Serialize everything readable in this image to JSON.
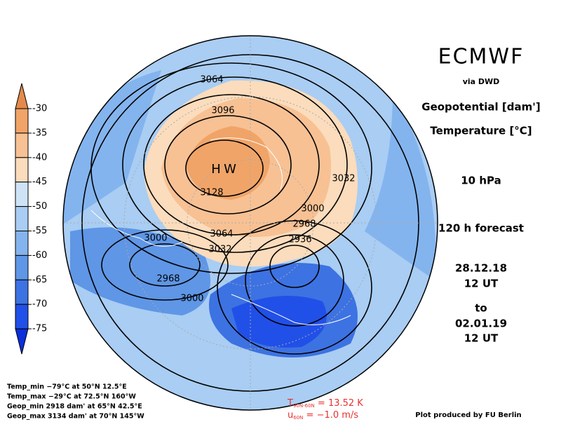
{
  "header": {
    "title": "ECMWF",
    "source": "via DWD",
    "fields": [
      "Geopotential [dam']",
      "Temperature [°C]"
    ],
    "level": "10 hPa",
    "forecast": "120 h forecast",
    "valid_from": {
      "date": "28.12.18",
      "time": "12 UT"
    },
    "to": "to",
    "valid_to": {
      "date": "02.01.19",
      "time": "12 UT"
    }
  },
  "colorbar": {
    "ticks": [
      -30,
      -35,
      -40,
      -45,
      -50,
      -55,
      -60,
      -65,
      -70,
      -75
    ],
    "colors": [
      "#e38a4c",
      "#f0a468",
      "#f7c194",
      "#fbdcbc",
      "#cfe3f7",
      "#a9cdf3",
      "#84b4ee",
      "#5f96e6",
      "#3d72e2",
      "#2150e8",
      "#0a2fdc"
    ]
  },
  "map": {
    "contour_labels": [
      "3064",
      "3096",
      "3128",
      "3032",
      "3000",
      "2968",
      "2936",
      "3064",
      "3032",
      "3000",
      "2968",
      "3000"
    ],
    "markers": [
      "H",
      "W"
    ]
  },
  "stats": [
    "Temp_min  −79°C at 50°N 12.5°E",
    "Temp_max  −29°C at 72.5°N 160°W",
    "Geop_min 2918 dam' at 65°N 42.5°E",
    "Geop_max 3134 dam' at 70°N 145°W"
  ],
  "indices": [
    {
      "symbol": "T",
      "subscript": "90N-60N",
      "text": " =  13.52 K"
    },
    {
      "symbol": "u",
      "subscript": "60N",
      "text": "  =  −1.0 m/s"
    }
  ],
  "credit": "Plot produced by FU Berlin"
}
